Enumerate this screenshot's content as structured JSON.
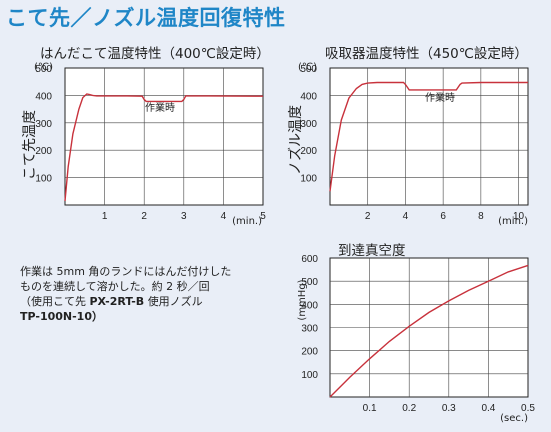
{
  "page_title": "こて先／ノズル温度回復特性",
  "note": {
    "line1": "作業は 5mm 角のランドにはんだ付けした",
    "line2": "ものを連続して溶かした。約 2 秒／回",
    "line3_a": "（使用こて先",
    "line3_b": "PX-2RT-B",
    "line3_c": "使用ノズル",
    "line4": "TP-100N-10）"
  },
  "chart_data": [
    {
      "type": "line",
      "title": "はんだこて温度特性（400℃設定時）",
      "xlabel": "(min.)",
      "ylabel": "こて先温度",
      "yunit": "(℃)",
      "xlim": [
        0,
        5
      ],
      "ylim": [
        0,
        500
      ],
      "xticks": [
        "1",
        "2",
        "3",
        "4",
        "5"
      ],
      "yticks": [
        "100",
        "200",
        "300",
        "400",
        "500"
      ],
      "grid": true,
      "annotation": "作業時",
      "color": "#c8323c",
      "series": [
        {
          "x": [
            0,
            0.08,
            0.2,
            0.35,
            0.45,
            0.55,
            0.62,
            0.7,
            0.8,
            1.5,
            1.95,
            2.0,
            2.05,
            2.95,
            3.0,
            3.05,
            3.6,
            5.0
          ],
          "y": [
            15,
            140,
            260,
            350,
            392,
            405,
            403,
            400,
            398,
            398,
            397,
            385,
            378,
            378,
            385,
            398,
            398,
            397
          ]
        }
      ]
    },
    {
      "type": "line",
      "title": "吸取器温度特性（450℃設定時）",
      "xlabel": "(min.)",
      "ylabel": "ノズル温度",
      "yunit": "(℃)",
      "xlim": [
        0,
        10.5
      ],
      "ylim": [
        0,
        500
      ],
      "xticks": [
        "2",
        "4",
        "6",
        "8",
        "10"
      ],
      "yticks": [
        "100",
        "200",
        "300",
        "400",
        "500"
      ],
      "grid": true,
      "annotation": "作業時",
      "color": "#c8323c",
      "series": [
        {
          "x": [
            0,
            0.25,
            0.6,
            1.0,
            1.4,
            1.7,
            2.0,
            2.5,
            3.9,
            4.0,
            4.2,
            6.7,
            6.9,
            7.0,
            8.0,
            10.5
          ],
          "y": [
            50,
            180,
            310,
            390,
            425,
            440,
            445,
            447,
            447,
            440,
            420,
            420,
            440,
            445,
            447,
            447
          ]
        }
      ]
    },
    {
      "type": "line",
      "title": "到達真空度",
      "xlabel": "(sec.)",
      "ylabel": "(mmHg)",
      "xlim": [
        0,
        0.5
      ],
      "ylim": [
        0,
        600
      ],
      "xticks": [
        "0.1",
        "0.2",
        "0.3",
        "0.4",
        "0.5"
      ],
      "yticks": [
        "100",
        "200",
        "300",
        "400",
        "500",
        "600"
      ],
      "grid": true,
      "color": "#c8323c",
      "series": [
        {
          "x": [
            0,
            0.05,
            0.1,
            0.15,
            0.2,
            0.25,
            0.3,
            0.35,
            0.4,
            0.45,
            0.5
          ],
          "y": [
            0,
            85,
            165,
            240,
            305,
            365,
            415,
            460,
            500,
            540,
            568
          ]
        }
      ]
    }
  ]
}
